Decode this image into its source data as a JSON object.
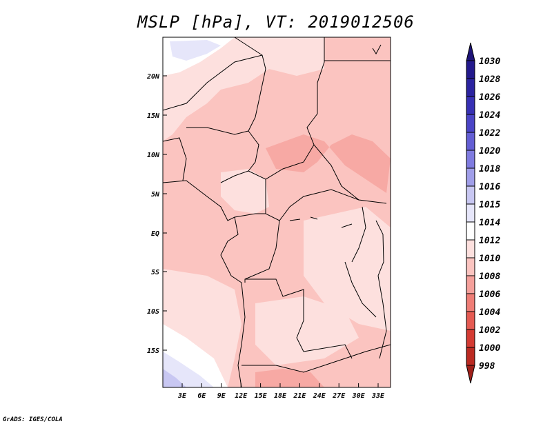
{
  "title": "MSLP [hPa], VT: 2019012506",
  "footer": "GrADS: IGES/COLA",
  "map": {
    "lat_labels": [
      "20N",
      "15N",
      "10N",
      "5N",
      "EQ",
      "5S",
      "10S",
      "15S"
    ],
    "lon_labels": [
      "3E",
      "6E",
      "9E",
      "12E",
      "15E",
      "18E",
      "21E",
      "24E",
      "27E",
      "30E",
      "33E"
    ]
  },
  "colorbar": {
    "levels": [
      {
        "label": "1030",
        "color": "#1e1478"
      },
      {
        "label": "1028",
        "color": "#23198c"
      },
      {
        "label": "1026",
        "color": "#2b23a0"
      },
      {
        "label": "1024",
        "color": "#3730b4"
      },
      {
        "label": "1022",
        "color": "#4a44c6"
      },
      {
        "label": "1020",
        "color": "#635ed4"
      },
      {
        "label": "1018",
        "color": "#7f7be0"
      },
      {
        "label": "1016",
        "color": "#a09ee9"
      },
      {
        "label": "1015",
        "color": "#c8c7f2"
      },
      {
        "label": "1014",
        "color": "#e6e6fa"
      },
      {
        "label": "1012",
        "color": "#ffffff"
      },
      {
        "label": "1010",
        "color": "#fde0de"
      },
      {
        "label": "1008",
        "color": "#fbc4c0"
      },
      {
        "label": "1006",
        "color": "#f5a09b"
      },
      {
        "label": "1004",
        "color": "#ef7d76"
      },
      {
        "label": "1002",
        "color": "#e55a52"
      },
      {
        "label": "1000",
        "color": "#d43b33"
      },
      {
        "label": "998",
        "color": "#bb2a22"
      }
    ],
    "bottom_color": "#a0201a"
  }
}
